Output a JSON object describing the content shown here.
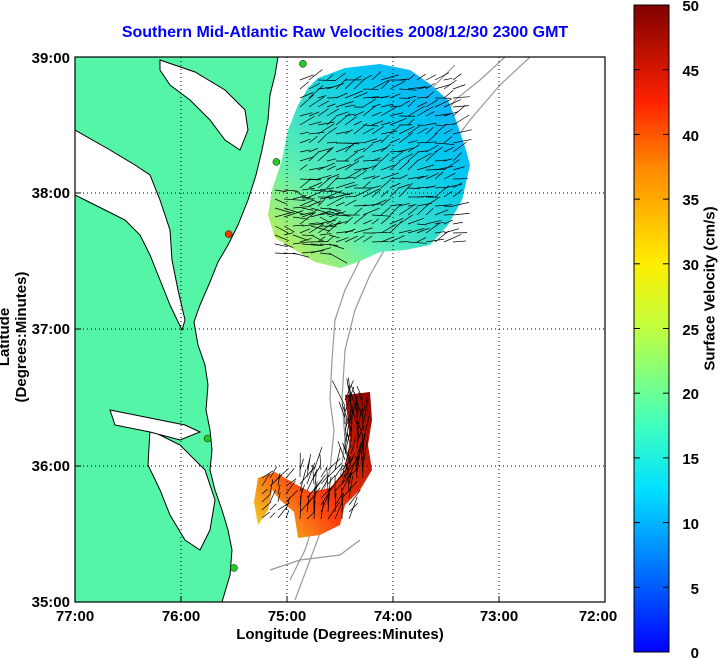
{
  "title": "Southern Mid-Atlantic Raw Velocities 2008/12/30 2300 GMT",
  "xlabel": "Longitude (Degrees:Minutes)",
  "ylabel": "Latitude (Degrees:Minutes)",
  "colorbar_label": "Surface Velocity (cm/s)",
  "colors": {
    "land": "#55f5a8",
    "title": "#0000ff",
    "grid": "#000000",
    "station": "#22cc22",
    "station_red": "#ff3300"
  },
  "chart_data": {
    "type": "heatmap",
    "x_ticks": [
      "77:00",
      "76:00",
      "75:00",
      "74:00",
      "73:00",
      "72:00"
    ],
    "y_ticks": [
      "39:00",
      "38:00",
      "37:00",
      "36:00",
      "35:00"
    ],
    "xlim": [
      -77,
      -72
    ],
    "ylim": [
      35,
      39
    ],
    "grid": true,
    "colorbar": {
      "ticks": [
        "50",
        "45",
        "40",
        "35",
        "30",
        "25",
        "20",
        "15",
        "10",
        "5",
        "0"
      ],
      "range": [
        0,
        50
      ],
      "units": "cm/s"
    },
    "stations": [
      {
        "lon": -74.85,
        "lat": 38.95,
        "color": "green"
      },
      {
        "lon": -75.1,
        "lat": 38.23,
        "color": "green"
      },
      {
        "lon": -75.55,
        "lat": 37.7,
        "color": "red"
      },
      {
        "lon": -75.75,
        "lat": 36.2,
        "color": "green"
      },
      {
        "lon": -75.5,
        "lat": 35.25,
        "color": "green"
      }
    ]
  }
}
